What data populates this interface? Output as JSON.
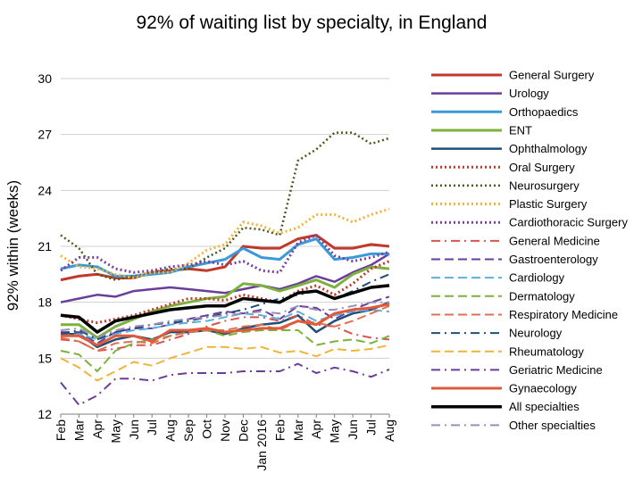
{
  "chart_data": {
    "type": "line",
    "title": "92% of waiting list by specialty, in England",
    "ylabel": "92% within (weeks)",
    "xlabel": "",
    "ylim": [
      12,
      30
    ],
    "yticks": [
      "12",
      "15",
      "18",
      "21",
      "24",
      "27",
      "30"
    ],
    "ytick_values": [
      12,
      15,
      18,
      21,
      24,
      27,
      30
    ],
    "categories": [
      "Feb",
      "Mar",
      "Apr",
      "May",
      "Jun",
      "Jul",
      "Aug",
      "Sep",
      "Oct",
      "Nov",
      "Dec",
      "Jan 2016",
      "Feb",
      "Mar",
      "Apr",
      "May",
      "Jun",
      "Jul",
      "Aug"
    ],
    "grid": "horizontal",
    "legend_position": "right",
    "series": [
      {
        "name": "General Surgery",
        "color": "#c0392b",
        "dash": "solid",
        "width": 3,
        "values": [
          19.2,
          19.4,
          19.5,
          19.3,
          19.3,
          19.6,
          19.7,
          19.8,
          19.7,
          19.9,
          21.0,
          20.9,
          20.9,
          21.4,
          21.6,
          20.9,
          20.9,
          21.1,
          21.0
        ]
      },
      {
        "name": "Urology",
        "color": "#6a3d9a",
        "dash": "solid",
        "width": 2.5,
        "values": [
          18.0,
          18.2,
          18.4,
          18.3,
          18.6,
          18.7,
          18.8,
          18.7,
          18.6,
          18.5,
          18.7,
          18.9,
          18.7,
          19.0,
          19.4,
          19.1,
          19.6,
          20.0,
          20.6
        ]
      },
      {
        "name": "Orthopaedics",
        "color": "#3a9ad9",
        "dash": "solid",
        "width": 3,
        "values": [
          19.8,
          20.0,
          19.9,
          19.4,
          19.4,
          19.5,
          19.6,
          19.9,
          20.1,
          20.3,
          20.9,
          20.4,
          20.3,
          21.1,
          21.4,
          20.3,
          20.4,
          20.6,
          20.6
        ]
      },
      {
        "name": "ENT",
        "color": "#7db13d",
        "dash": "solid",
        "width": 3,
        "values": [
          16.8,
          16.8,
          16.1,
          16.7,
          17.1,
          17.5,
          17.8,
          18.0,
          18.2,
          18.3,
          19.0,
          18.9,
          18.6,
          18.9,
          19.2,
          18.8,
          19.5,
          19.9,
          19.8
        ]
      },
      {
        "name": "Ophthalmology",
        "color": "#1f4e79",
        "dash": "solid",
        "width": 2.5,
        "values": [
          16.3,
          16.3,
          15.6,
          16.0,
          16.2,
          16.0,
          16.4,
          16.4,
          16.5,
          16.3,
          16.6,
          16.8,
          16.9,
          17.3,
          16.4,
          17.0,
          17.4,
          17.6,
          18.0
        ]
      },
      {
        "name": "Oral Surgery",
        "color": "#c0392b",
        "dash": "2,3",
        "width": 3,
        "values": [
          17.3,
          17.1,
          16.9,
          17.1,
          17.3,
          17.6,
          17.9,
          18.2,
          18.2,
          18.1,
          18.4,
          18.2,
          18.0,
          18.6,
          18.9,
          18.4,
          19.0,
          19.8,
          20.2
        ]
      },
      {
        "name": "Neurosurgery",
        "color": "#4a5a1a",
        "dash": "2,3",
        "width": 2.5,
        "values": [
          21.6,
          20.9,
          19.5,
          19.2,
          19.4,
          19.6,
          19.8,
          19.8,
          20.4,
          20.9,
          22.0,
          21.9,
          21.6,
          25.6,
          26.2,
          27.1,
          27.1,
          26.5,
          26.8
        ]
      },
      {
        "name": "Plastic Surgery",
        "color": "#f0b43a",
        "dash": "2,3",
        "width": 3,
        "values": [
          20.5,
          19.9,
          19.8,
          19.5,
          19.3,
          19.6,
          19.6,
          20.1,
          20.8,
          21.1,
          22.3,
          22.1,
          21.7,
          22.0,
          22.7,
          22.7,
          22.3,
          22.7,
          23.0
        ]
      },
      {
        "name": "Cardiothoracic Surgery",
        "color": "#7b3f9e",
        "dash": "2,3",
        "width": 3,
        "values": [
          19.7,
          20.4,
          20.4,
          19.8,
          19.6,
          19.7,
          19.9,
          20.0,
          20.2,
          20.0,
          20.2,
          19.7,
          19.6,
          21.2,
          21.6,
          20.5,
          20.2,
          20.4,
          20.7
        ]
      },
      {
        "name": "General Medicine",
        "color": "#d9534f",
        "dash": "10,5,2,5",
        "width": 2,
        "values": [
          16.0,
          15.9,
          15.4,
          15.5,
          15.7,
          15.7,
          16.0,
          16.3,
          16.7,
          17.0,
          17.2,
          17.2,
          17.0,
          17.3,
          16.8,
          16.7,
          16.3,
          16.1,
          16.0
        ]
      },
      {
        "name": "Gastroenterology",
        "color": "#6a3d9a",
        "dash": "10,5",
        "width": 2,
        "values": [
          16.4,
          16.4,
          15.8,
          16.4,
          16.6,
          16.6,
          16.8,
          17.1,
          17.3,
          17.5,
          17.4,
          17.6,
          17.1,
          17.8,
          17.7,
          17.1,
          17.6,
          18.0,
          18.3
        ]
      },
      {
        "name": "Cardiology",
        "color": "#5bb0e0",
        "dash": "10,5",
        "width": 2,
        "values": [
          16.2,
          16.3,
          16.0,
          16.3,
          16.5,
          16.6,
          16.8,
          16.9,
          17.0,
          17.2,
          17.4,
          17.3,
          17.1,
          17.5,
          17.0,
          17.3,
          17.5,
          17.6,
          17.5
        ]
      },
      {
        "name": "Dermatology",
        "color": "#7db13d",
        "dash": "10,5",
        "width": 2,
        "values": [
          15.4,
          15.2,
          14.3,
          15.4,
          15.8,
          16.0,
          16.2,
          16.4,
          16.5,
          16.2,
          16.4,
          16.5,
          16.5,
          16.5,
          15.7,
          15.9,
          16.0,
          15.8,
          16.2
        ]
      },
      {
        "name": "Respiratory Medicine",
        "color": "#e07050",
        "dash": "10,5",
        "width": 2,
        "values": [
          16.1,
          15.9,
          15.4,
          15.8,
          15.9,
          15.8,
          16.2,
          16.4,
          16.5,
          16.5,
          16.7,
          16.8,
          16.5,
          17.0,
          16.9,
          16.7,
          17.0,
          17.4,
          17.8
        ]
      },
      {
        "name": "Neurology",
        "color": "#1f4e79",
        "dash": "10,5,2,5",
        "width": 2,
        "values": [
          16.3,
          16.5,
          16.0,
          16.4,
          16.6,
          16.8,
          16.9,
          17.0,
          17.2,
          17.4,
          17.6,
          17.9,
          18.2,
          18.4,
          18.6,
          18.2,
          18.6,
          19.1,
          19.5
        ]
      },
      {
        "name": "Rheumatology",
        "color": "#f0b43a",
        "dash": "10,5",
        "width": 2,
        "values": [
          15.0,
          14.5,
          13.8,
          14.3,
          14.8,
          14.6,
          15.0,
          15.3,
          15.6,
          15.6,
          15.5,
          15.6,
          15.3,
          15.4,
          15.1,
          15.5,
          15.4,
          15.5,
          15.7
        ]
      },
      {
        "name": "Geriatric Medicine",
        "color": "#6a3d9a",
        "dash": "10,5,2,5",
        "width": 2,
        "values": [
          13.7,
          12.5,
          13.0,
          13.9,
          13.9,
          13.8,
          14.1,
          14.2,
          14.2,
          14.2,
          14.3,
          14.3,
          14.3,
          14.7,
          14.2,
          14.5,
          14.3,
          14.0,
          14.4
        ]
      },
      {
        "name": "Gynaecology",
        "color": "#e05a3a",
        "dash": "solid",
        "width": 3,
        "values": [
          16.2,
          16.2,
          15.7,
          16.2,
          16.2,
          15.9,
          16.5,
          16.5,
          16.6,
          16.4,
          16.5,
          16.6,
          16.6,
          17.0,
          16.8,
          17.4,
          17.6,
          17.7,
          17.9
        ]
      },
      {
        "name": "All specialties",
        "color": "#000000",
        "dash": "solid",
        "width": 3.5,
        "values": [
          17.3,
          17.2,
          16.4,
          17.0,
          17.2,
          17.4,
          17.6,
          17.7,
          17.8,
          17.8,
          18.2,
          18.1,
          18.0,
          18.5,
          18.6,
          18.2,
          18.5,
          18.8,
          18.9
        ]
      },
      {
        "name": "Other specialties",
        "color": "#9a8fb8",
        "dash": "10,5,2,5",
        "width": 2,
        "values": [
          16.5,
          16.6,
          16.1,
          16.5,
          16.7,
          16.8,
          17.0,
          17.1,
          17.2,
          17.3,
          17.4,
          17.5,
          17.4,
          17.8,
          17.6,
          17.6,
          17.8,
          18.0,
          18.0
        ]
      }
    ]
  }
}
